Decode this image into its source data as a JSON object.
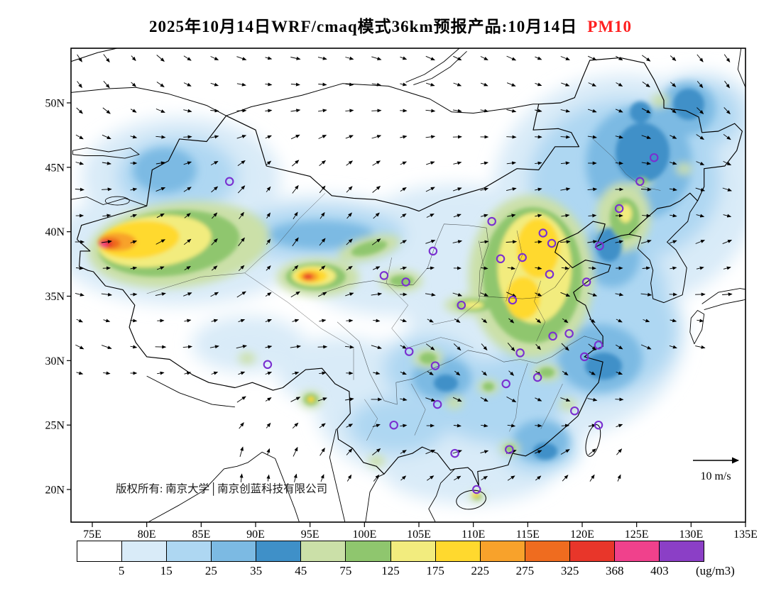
{
  "title": {
    "prefix": "2025年10月14日WRF/cmaq模式36km预报产品:10月14日",
    "pollutant": "PM10"
  },
  "colors": {
    "pollutant_label": "#FF2020",
    "station_ring": "#7A2FD0",
    "boundary": "#000000"
  },
  "map": {
    "copyright": "版权所有: 南京大学│南京创蓝科技有限公司",
    "wind_scale_label": "10 m/s",
    "lat_ticks": [
      "50N",
      "45N",
      "40N",
      "35N",
      "30N",
      "25N",
      "20N"
    ],
    "lon_ticks": [
      "75E",
      "80E",
      "85E",
      "90E",
      "95E",
      "100E",
      "105E",
      "110E",
      "115E",
      "120E",
      "125E",
      "130E",
      "135E"
    ]
  },
  "chart_data": {
    "type": "heatmap",
    "title": "2025年10月14日WRF/cmaq模式36km预报产品:10月14日 PM10",
    "variable": "PM10",
    "units": "(ug/m3)",
    "model": "WRF/cmaq 36km",
    "valid_date": "10月14日",
    "lon_axis": {
      "ticks": [
        75,
        80,
        85,
        90,
        95,
        100,
        105,
        110,
        115,
        120,
        125,
        130,
        135
      ],
      "unit": "E"
    },
    "lat_axis": {
      "ticks": [
        20,
        25,
        30,
        35,
        40,
        45,
        50
      ],
      "unit": "N"
    },
    "wind_scale_ms": 10,
    "colorbar": {
      "levels": [
        5,
        15,
        25,
        35,
        45,
        75,
        125,
        175,
        225,
        275,
        325,
        368,
        403
      ],
      "colors": [
        "#FFFFFF",
        "#D9EBF8",
        "#AED7F2",
        "#7CBAE3",
        "#3F90C8",
        "#CBE0A8",
        "#8FC66E",
        "#F2EC7E",
        "#FFD92E",
        "#F8A22B",
        "#EF6C1F",
        "#E8362A",
        "#F0418C",
        "#8B3FC6"
      ]
    },
    "high_value_centers": [
      {
        "region": "Tarim Basin, southern Xinjiang (~79E,39N)",
        "approx_peak_ugm3": 400
      },
      {
        "region": "Qaidam Basin (~95E,37N)",
        "approx_peak_ugm3": 350
      },
      {
        "region": "North China Plain / Shanxi-Hebei-Henan (112-118E,34-41N)",
        "approx_peak_ugm3": 225
      },
      {
        "region": "Liaoning corridor (~123E,41N)",
        "approx_peak_ugm3": 150
      }
    ],
    "station_markers_lonlat": [
      [
        87.6,
        43.9
      ],
      [
        126.6,
        45.75
      ],
      [
        125.3,
        43.9
      ],
      [
        123.4,
        41.8
      ],
      [
        121.6,
        38.9
      ],
      [
        116.4,
        39.9
      ],
      [
        117.2,
        39.1
      ],
      [
        114.5,
        38.0
      ],
      [
        112.5,
        37.9
      ],
      [
        111.7,
        40.8
      ],
      [
        106.3,
        38.5
      ],
      [
        101.8,
        36.6
      ],
      [
        103.8,
        36.1
      ],
      [
        108.9,
        34.3
      ],
      [
        113.6,
        34.7
      ],
      [
        117.0,
        36.7
      ],
      [
        120.4,
        36.1
      ],
      [
        118.8,
        32.1
      ],
      [
        117.3,
        31.9
      ],
      [
        121.5,
        31.2
      ],
      [
        120.2,
        30.3
      ],
      [
        114.3,
        30.6
      ],
      [
        104.1,
        30.7
      ],
      [
        106.5,
        29.6
      ],
      [
        113.0,
        28.2
      ],
      [
        115.9,
        28.7
      ],
      [
        119.3,
        26.1
      ],
      [
        121.5,
        25.0
      ],
      [
        106.7,
        26.6
      ],
      [
        102.7,
        25.0
      ],
      [
        108.3,
        22.8
      ],
      [
        113.3,
        23.1
      ],
      [
        110.3,
        20.0
      ],
      [
        91.1,
        29.7
      ]
    ]
  }
}
